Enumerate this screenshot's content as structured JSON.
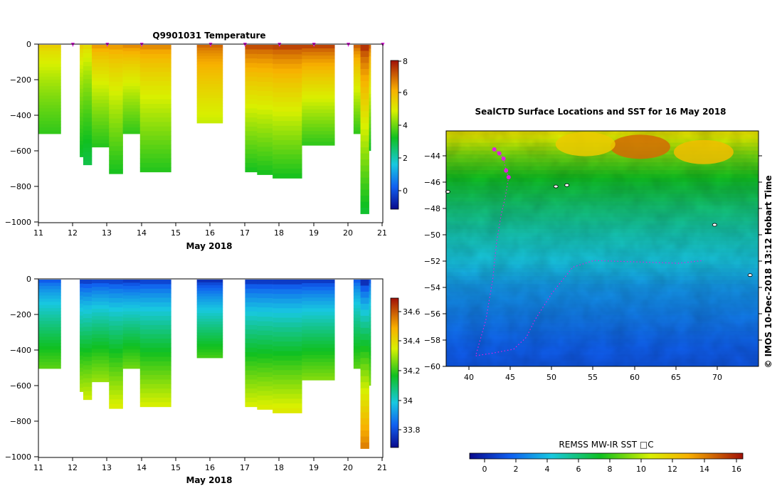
{
  "profiles_top": {
    "title": "Q9901031  Temperature",
    "xlabel": "May 2018",
    "x_ticks": [
      "11",
      "12",
      "13",
      "14",
      "15",
      "16",
      "17",
      "18",
      "19",
      "20",
      "21"
    ],
    "y_ticks": [
      "0",
      "−200",
      "−400",
      "−600",
      "−800",
      "−1000"
    ],
    "colorbar_ticks": [
      "8",
      "6",
      "4",
      "2",
      "0"
    ]
  },
  "profiles_bottom": {
    "xlabel": "May 2018",
    "x_ticks": [
      "11",
      "12",
      "13",
      "14",
      "15",
      "16",
      "17",
      "18",
      "19",
      "20",
      "21"
    ],
    "y_ticks": [
      "0",
      "−200",
      "−400",
      "−600",
      "−800",
      "−1000"
    ],
    "colorbar_ticks": [
      "34.6",
      "34.4",
      "34.2",
      "34",
      "33.8"
    ]
  },
  "map": {
    "title": "SealCTD Surface Locations and SST for 16 May 2018",
    "x_ticks": [
      "40",
      "45",
      "50",
      "55",
      "60",
      "65",
      "70"
    ],
    "y_ticks": [
      "−44",
      "−46",
      "−48",
      "−50",
      "−52",
      "−54",
      "−56",
      "−58",
      "−60"
    ],
    "side_label": "© IMOS 10-Dec-2018 13:12 Hobart Time",
    "colorbar_label": "REMSS MW-IR SST □C",
    "colorbar_ticks": [
      "0",
      "2",
      "4",
      "6",
      "8",
      "10",
      "12",
      "14",
      "16"
    ]
  },
  "chart_data": [
    {
      "type": "heatmap",
      "title": "Q9901031  Temperature",
      "xlabel": "May 2018",
      "ylabel": "",
      "xlim": [
        11,
        21
      ],
      "ylim": [
        -1000,
        0
      ],
      "colorbar": {
        "range": [
          -1,
          8
        ],
        "ticks": [
          8,
          6,
          4,
          2,
          0
        ]
      },
      "surfacing_days": [
        12.0,
        13.0,
        14.0,
        16.0,
        17.0,
        18.0,
        19.0,
        20.0,
        21.0
      ],
      "profiles": [
        {
          "start": 11.0,
          "end": 11.65,
          "depth": 500,
          "surface": 5.6,
          "deep": 3.6
        },
        {
          "start": 12.2,
          "end": 12.3,
          "depth": 630,
          "surface": 5.6,
          "deep": 3.2
        },
        {
          "start": 12.3,
          "end": 12.55,
          "depth": 675,
          "surface": 5.4,
          "deep": 3.0
        },
        {
          "start": 12.55,
          "end": 13.05,
          "depth": 575,
          "surface": 6.4,
          "deep": 3.5
        },
        {
          "start": 13.05,
          "end": 13.45,
          "depth": 725,
          "surface": 6.4,
          "deep": 3.4
        },
        {
          "start": 13.45,
          "end": 13.95,
          "depth": 500,
          "surface": 6.6,
          "deep": 3.6
        },
        {
          "start": 13.95,
          "end": 14.85,
          "depth": 715,
          "surface": 6.6,
          "deep": 3.5
        },
        {
          "start": 15.6,
          "end": 16.35,
          "depth": 440,
          "surface": 7.0,
          "deep": 4.8
        },
        {
          "start": 17.0,
          "end": 17.35,
          "depth": 715,
          "surface": 7.3,
          "deep": 3.4
        },
        {
          "start": 17.35,
          "end": 17.8,
          "depth": 730,
          "surface": 7.3,
          "deep": 3.4
        },
        {
          "start": 17.8,
          "end": 18.65,
          "depth": 750,
          "surface": 7.4,
          "deep": 3.4
        },
        {
          "start": 18.65,
          "end": 19.6,
          "depth": 565,
          "surface": 7.4,
          "deep": 3.6
        },
        {
          "start": 20.15,
          "end": 20.35,
          "depth": 500,
          "surface": 7.1,
          "deep": 3.6
        },
        {
          "start": 20.35,
          "end": 20.6,
          "depth": 950,
          "surface": 7.6,
          "deep": 3.2
        },
        {
          "start": 20.6,
          "end": 20.65,
          "depth": 595,
          "surface": 7.0,
          "deep": 3.3
        }
      ]
    },
    {
      "type": "heatmap",
      "title": "",
      "xlabel": "May 2018",
      "ylabel": "",
      "xlim": [
        11,
        21
      ],
      "ylim": [
        -1000,
        0
      ],
      "colorbar": {
        "range": [
          33.65,
          34.7
        ],
        "ticks": [
          34.6,
          34.4,
          34.2,
          34,
          33.8
        ]
      },
      "profiles": [
        {
          "start": 11.0,
          "end": 11.65,
          "depth": 500,
          "surface": 33.8,
          "deep": 34.22
        },
        {
          "start": 12.2,
          "end": 12.3,
          "depth": 630,
          "surface": 33.75,
          "deep": 34.3
        },
        {
          "start": 12.3,
          "end": 12.55,
          "depth": 675,
          "surface": 33.75,
          "deep": 34.33
        },
        {
          "start": 12.55,
          "end": 13.05,
          "depth": 575,
          "surface": 33.76,
          "deep": 34.28
        },
        {
          "start": 13.05,
          "end": 13.45,
          "depth": 725,
          "surface": 33.76,
          "deep": 34.35
        },
        {
          "start": 13.45,
          "end": 13.95,
          "depth": 500,
          "surface": 33.74,
          "deep": 34.24
        },
        {
          "start": 13.95,
          "end": 14.85,
          "depth": 715,
          "surface": 33.76,
          "deep": 34.34
        },
        {
          "start": 15.6,
          "end": 16.35,
          "depth": 440,
          "surface": 33.72,
          "deep": 34.2
        },
        {
          "start": 17.0,
          "end": 17.35,
          "depth": 715,
          "surface": 33.74,
          "deep": 34.34
        },
        {
          "start": 17.35,
          "end": 17.8,
          "depth": 730,
          "surface": 33.74,
          "deep": 34.35
        },
        {
          "start": 17.8,
          "end": 18.65,
          "depth": 750,
          "surface": 33.74,
          "deep": 34.36
        },
        {
          "start": 18.65,
          "end": 19.6,
          "depth": 565,
          "surface": 33.74,
          "deep": 34.26
        },
        {
          "start": 20.15,
          "end": 20.35,
          "depth": 500,
          "surface": 33.8,
          "deep": 34.22
        },
        {
          "start": 20.35,
          "end": 20.6,
          "depth": 950,
          "surface": 33.72,
          "deep": 34.55
        },
        {
          "start": 20.6,
          "end": 20.65,
          "depth": 595,
          "surface": 33.8,
          "deep": 34.26
        }
      ]
    },
    {
      "type": "heatmap",
      "title": "SealCTD Surface Locations and SST for 16 May 2018",
      "xlabel": "",
      "ylabel": "",
      "xlim": [
        37.5,
        74.5
      ],
      "ylim": [
        -60,
        -42.2
      ],
      "colorbar": {
        "label": "REMSS MW-IR SST □C",
        "range": [
          -1,
          16.5
        ],
        "ticks": [
          0,
          2,
          4,
          6,
          8,
          10,
          12,
          14,
          16
        ]
      },
      "sst_latitude_bands": [
        {
          "lat": -42.5,
          "sst": 11.0
        },
        {
          "lat": -44.0,
          "sst": 9.0
        },
        {
          "lat": -46.0,
          "sst": 7.2
        },
        {
          "lat": -48.0,
          "sst": 6.0
        },
        {
          "lat": -50.0,
          "sst": 5.0
        },
        {
          "lat": -52.0,
          "sst": 4.2
        },
        {
          "lat": -54.0,
          "sst": 3.0
        },
        {
          "lat": -56.0,
          "sst": 2.4
        },
        {
          "lat": -58.0,
          "sst": 1.8
        },
        {
          "lat": -60.0,
          "sst": 1.3
        }
      ],
      "warm_patches": [
        {
          "lon": 60.5,
          "lat": -43.4,
          "sst": 14.5
        },
        {
          "lon": 54.0,
          "lat": -43.2,
          "sst": 12.0
        },
        {
          "lon": 68.0,
          "lat": -43.8,
          "sst": 12.5
        }
      ],
      "track": [
        [
          43.2,
          -43.6
        ],
        [
          43.8,
          -43.9
        ],
        [
          44.3,
          -44.3
        ],
        [
          44.6,
          -45.2
        ],
        [
          44.9,
          -45.7
        ],
        [
          44.5,
          -47.2
        ],
        [
          44.0,
          -48.6
        ],
        [
          43.5,
          -50.5
        ],
        [
          43.0,
          -53.5
        ],
        [
          42.2,
          -56.5
        ],
        [
          41.0,
          -59.2
        ],
        [
          43.0,
          -59.0
        ],
        [
          45.5,
          -58.7
        ],
        [
          47.0,
          -57.8
        ],
        [
          48.0,
          -56.5
        ],
        [
          50.0,
          -54.5
        ],
        [
          52.5,
          -52.5
        ],
        [
          55.0,
          -52.0
        ],
        [
          60.0,
          -52.1
        ],
        [
          65.0,
          -52.2
        ],
        [
          68.0,
          -52.0
        ]
      ],
      "surface_points": [
        [
          43.2,
          -43.6
        ],
        [
          43.8,
          -43.9
        ],
        [
          44.3,
          -44.3
        ],
        [
          44.6,
          -45.2
        ],
        [
          44.9,
          -45.7
        ]
      ],
      "islands": [
        [
          37.7,
          -46.8
        ],
        [
          51.8,
          -46.3
        ],
        [
          50.5,
          -46.4
        ],
        [
          69.3,
          -49.3
        ],
        [
          73.5,
          -53.1
        ]
      ]
    }
  ]
}
